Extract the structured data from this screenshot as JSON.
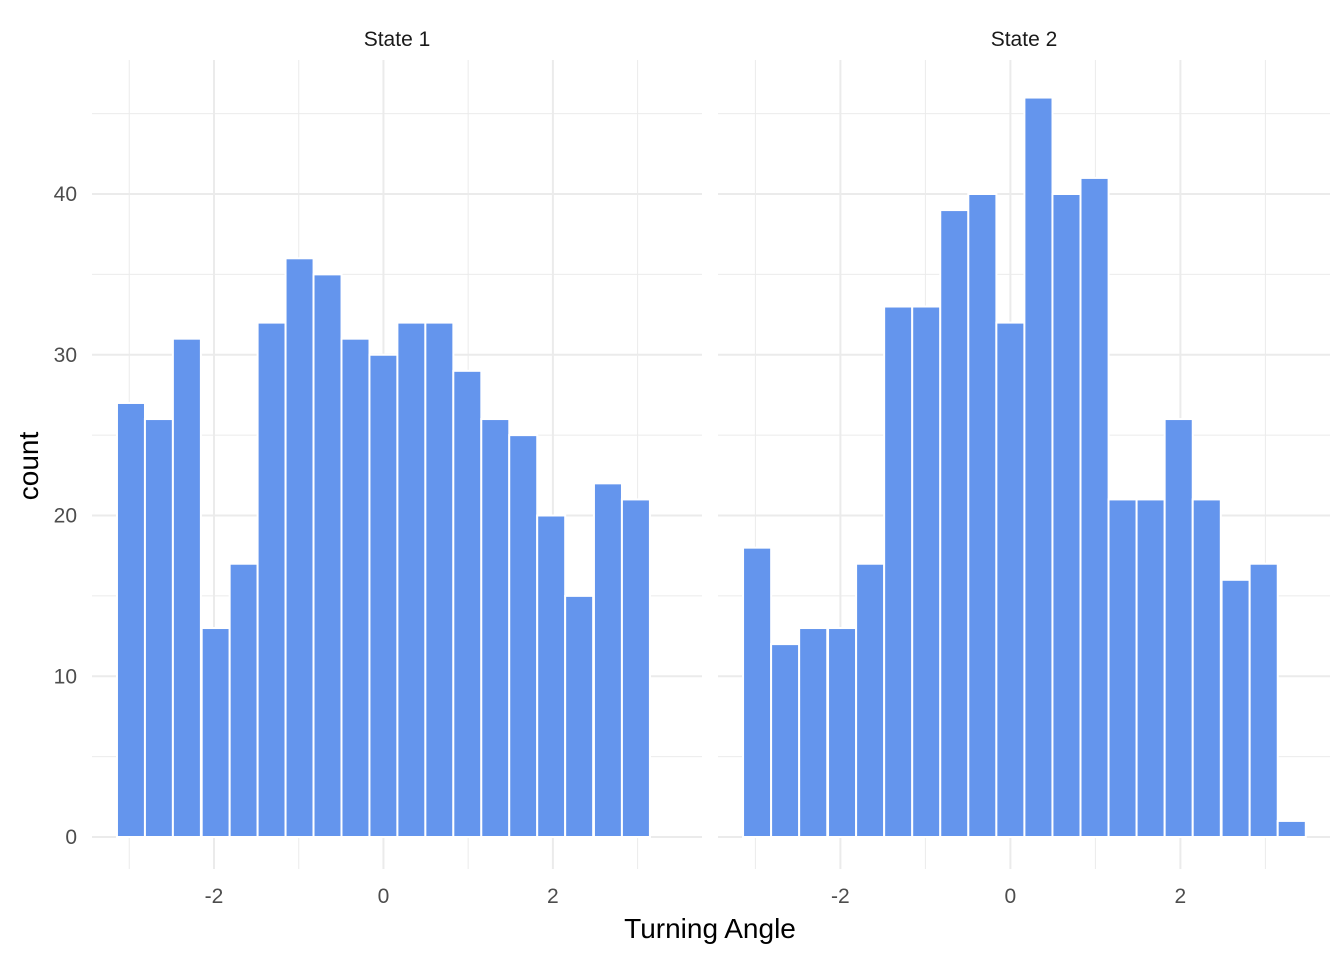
{
  "chart_data": {
    "type": "bar",
    "xlabel": "Turning Angle",
    "ylabel": "count",
    "ylim": [
      0,
      48
    ],
    "y_ticks": [
      0,
      10,
      20,
      30,
      40
    ],
    "x_ticks": [
      -2,
      0,
      2
    ],
    "x_tick_labels": [
      "-2",
      "0",
      "2"
    ],
    "y_tick_labels": [
      "0",
      "10",
      "20",
      "30",
      "40"
    ],
    "grid": true,
    "bar_color": "#6495ED",
    "bin_width": 0.33069,
    "facets": [
      {
        "title": "State 1",
        "xlim": [
          -3.44,
          3.76
        ],
        "bins": [
          {
            "x": -2.98,
            "count": 27
          },
          {
            "x": -2.65,
            "count": 26
          },
          {
            "x": -2.32,
            "count": 31
          },
          {
            "x": -1.98,
            "count": 13
          },
          {
            "x": -1.65,
            "count": 17
          },
          {
            "x": -1.32,
            "count": 32
          },
          {
            "x": -0.99,
            "count": 36
          },
          {
            "x": -0.66,
            "count": 35
          },
          {
            "x": -0.33,
            "count": 31
          },
          {
            "x": 0.0,
            "count": 30
          },
          {
            "x": 0.33,
            "count": 32
          },
          {
            "x": 0.66,
            "count": 32
          },
          {
            "x": 0.99,
            "count": 29
          },
          {
            "x": 1.32,
            "count": 26
          },
          {
            "x": 1.65,
            "count": 25
          },
          {
            "x": 1.98,
            "count": 20
          },
          {
            "x": 2.31,
            "count": 15
          },
          {
            "x": 2.65,
            "count": 22
          },
          {
            "x": 2.98,
            "count": 21
          },
          {
            "x": 3.31,
            "count": 0
          }
        ]
      },
      {
        "title": "State 2",
        "xlim": [
          -3.44,
          3.76
        ],
        "bins": [
          {
            "x": -2.98,
            "count": 18
          },
          {
            "x": -2.65,
            "count": 12
          },
          {
            "x": -2.32,
            "count": 13
          },
          {
            "x": -1.98,
            "count": 13
          },
          {
            "x": -1.65,
            "count": 17
          },
          {
            "x": -1.32,
            "count": 33
          },
          {
            "x": -0.99,
            "count": 33
          },
          {
            "x": -0.66,
            "count": 39
          },
          {
            "x": -0.33,
            "count": 40
          },
          {
            "x": 0.0,
            "count": 32
          },
          {
            "x": 0.33,
            "count": 46
          },
          {
            "x": 0.66,
            "count": 40
          },
          {
            "x": 0.99,
            "count": 41
          },
          {
            "x": 1.32,
            "count": 21
          },
          {
            "x": 1.65,
            "count": 21
          },
          {
            "x": 1.98,
            "count": 26
          },
          {
            "x": 2.31,
            "count": 21
          },
          {
            "x": 2.65,
            "count": 16
          },
          {
            "x": 2.98,
            "count": 17
          },
          {
            "x": 3.31,
            "count": 1
          }
        ]
      }
    ]
  }
}
